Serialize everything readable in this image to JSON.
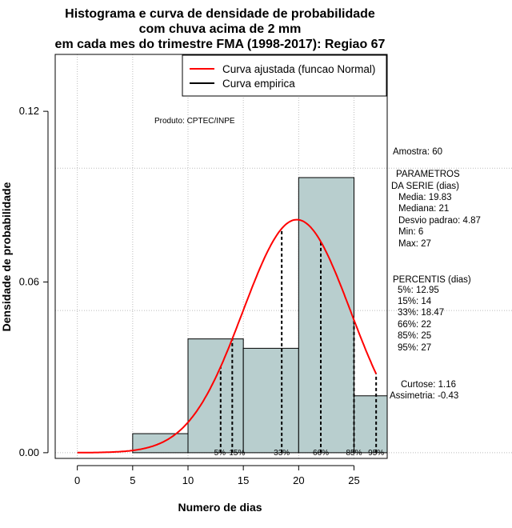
{
  "chart_data": {
    "type": "histogram",
    "title_lines": [
      "Histograma e curva de densidade de probabilidade",
      "com chuva acima de 2 mm",
      "em cada mes do trimestre FMA (1998-2017): Regiao 67"
    ],
    "xlabel": "Numero de dias",
    "ylabel": "Densidade de probabilidade",
    "xlim": [
      -2,
      28
    ],
    "ylim": [
      -0.002,
      0.14
    ],
    "x_ticks": [
      0,
      5,
      10,
      15,
      20,
      25
    ],
    "y_ticks": [
      0.0,
      0.06,
      0.12
    ],
    "y_tick_labels": [
      "0.00",
      "0.06",
      "0.12"
    ],
    "bins": [
      {
        "x0": 5,
        "x1": 10,
        "density": 0.0067
      },
      {
        "x0": 10,
        "x1": 15,
        "density": 0.04
      },
      {
        "x0": 15,
        "x1": 20,
        "density": 0.0367
      },
      {
        "x0": 20,
        "x1": 25,
        "density": 0.0967
      },
      {
        "x0": 25,
        "x1": 28,
        "density": 0.02
      }
    ],
    "normal_fit": {
      "mean": 19.83,
      "sd": 4.87,
      "x_from": 0,
      "x_to": 27
    },
    "percentile_lines": [
      {
        "label": "5%",
        "x": 12.95
      },
      {
        "label": "15%",
        "x": 14
      },
      {
        "label": "33%",
        "x": 18.47
      },
      {
        "label": "66%",
        "x": 22
      },
      {
        "label": "85%",
        "x": 25
      },
      {
        "label": "95%",
        "x": 27
      }
    ],
    "legend": [
      {
        "label": "Curva ajustada (funcao Normal)",
        "color": "#ff0000"
      },
      {
        "label": "Curva empirica",
        "color": "#000000"
      }
    ],
    "product_label": "Produto: CPTEC/INPE",
    "colors": {
      "bar_fill": "#b8cece",
      "curve": "#ff0000",
      "grid": "#bbbbbb"
    }
  },
  "side_panel": {
    "sample": "Amostra: 60",
    "params_title_1": "PARAMETROS",
    "params_title_2": "DA SERIE (dias)",
    "media": "Media: 19.83",
    "mediana": "Mediana: 21",
    "desvio": "Desvio padrao: 4.87",
    "min": "Min: 6",
    "max": "Max: 27",
    "pct_title": "PERCENTIS (dias)",
    "p5": "5%: 12.95",
    "p15": "15%: 14",
    "p33": "33%: 18.47",
    "p66": "66%: 22",
    "p85": "85%: 25",
    "p95": "95%: 27",
    "curtose": "Curtose: 1.16",
    "assimetria": "Assimetria: -0.43"
  }
}
